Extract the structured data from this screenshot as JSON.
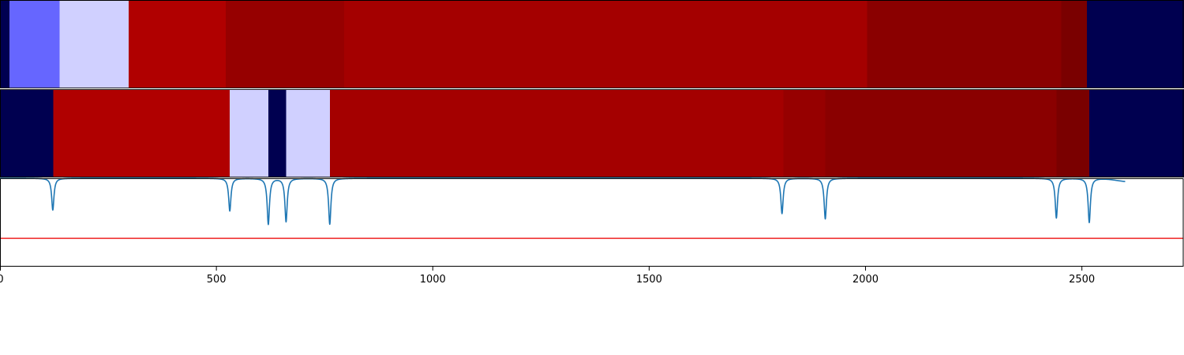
{
  "chart_data": {
    "type": "heatmap",
    "x_range": [
      0,
      2735
    ],
    "grid": false,
    "legend": "none",
    "colors": {
      "dark_navy": "#000050",
      "medium_blue": "#6666ff",
      "pale_lavender": "#d0d0ff",
      "bright_red": "#b00000",
      "red": "#a40000",
      "dark_red": "#960000",
      "darker_red": "#8a0000",
      "deepest_red": "#7a0000",
      "signal_line": "#1f77b4",
      "threshold_line": "#ee2222",
      "axis_spine": "#000000",
      "figure_background": "#ffffff"
    },
    "rows": [
      {
        "segments": [
          {
            "start": 0,
            "end": 22,
            "color": "dark_navy"
          },
          {
            "start": 22,
            "end": 138,
            "color": "medium_blue"
          },
          {
            "start": 138,
            "end": 297,
            "color": "pale_lavender"
          },
          {
            "start": 297,
            "end": 522,
            "color": "bright_red"
          },
          {
            "start": 522,
            "end": 795,
            "color": "dark_red"
          },
          {
            "start": 795,
            "end": 2004,
            "color": "red"
          },
          {
            "start": 2004,
            "end": 2452,
            "color": "darker_red"
          },
          {
            "start": 2452,
            "end": 2512,
            "color": "deepest_red"
          },
          {
            "start": 2512,
            "end": 2735,
            "color": "dark_navy"
          }
        ]
      },
      {
        "segments": [
          {
            "start": 0,
            "end": 123,
            "color": "dark_navy"
          },
          {
            "start": 123,
            "end": 531,
            "color": "bright_red"
          },
          {
            "start": 531,
            "end": 620,
            "color": "pale_lavender"
          },
          {
            "start": 620,
            "end": 661,
            "color": "dark_navy"
          },
          {
            "start": 661,
            "end": 762,
            "color": "pale_lavender"
          },
          {
            "start": 762,
            "end": 1810,
            "color": "red"
          },
          {
            "start": 1810,
            "end": 1907,
            "color": "dark_red"
          },
          {
            "start": 1907,
            "end": 2441,
            "color": "darker_red"
          },
          {
            "start": 2441,
            "end": 2517,
            "color": "deepest_red"
          },
          {
            "start": 2517,
            "end": 2735,
            "color": "dark_navy"
          }
        ]
      }
    ],
    "signal": {
      "baseline": 0,
      "threshold": -0.68,
      "y_range": [
        -1,
        0
      ],
      "dips": [
        {
          "x": 122,
          "depth": 0.36
        },
        {
          "x": 531,
          "depth": 0.37
        },
        {
          "x": 620,
          "depth": 0.52
        },
        {
          "x": 661,
          "depth": 0.49
        },
        {
          "x": 762,
          "depth": 0.52
        },
        {
          "x": 1807,
          "depth": 0.4
        },
        {
          "x": 1907,
          "depth": 0.46
        },
        {
          "x": 2441,
          "depth": 0.45
        },
        {
          "x": 2517,
          "depth": 0.5
        }
      ]
    },
    "x_ticks": [
      {
        "value": 0,
        "label": "0"
      },
      {
        "value": 500,
        "label": "500"
      },
      {
        "value": 1000,
        "label": "1000"
      },
      {
        "value": 1500,
        "label": "1500"
      },
      {
        "value": 2000,
        "label": "2000"
      },
      {
        "value": 2500,
        "label": "2500"
      }
    ]
  }
}
